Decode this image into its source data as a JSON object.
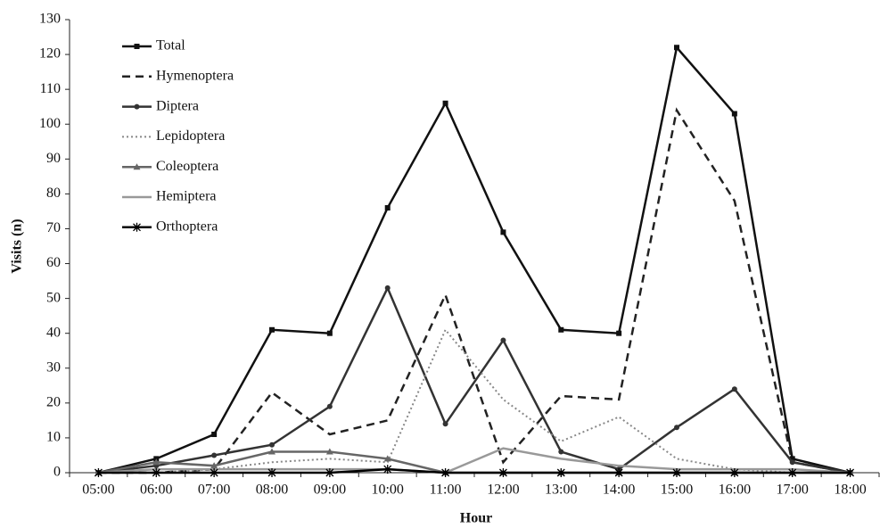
{
  "chart_data": {
    "type": "line",
    "x_label": "Hour",
    "y_label": "Visits (n)",
    "categories": [
      "05:00",
      "06:00",
      "07:00",
      "08:00",
      "09:00",
      "10:00",
      "11:00",
      "12:00",
      "13:00",
      "14:00",
      "15:00",
      "16:00",
      "17:00",
      "18:00"
    ],
    "ylim": [
      0,
      130
    ],
    "yticks": [
      0,
      10,
      20,
      30,
      40,
      50,
      60,
      70,
      80,
      90,
      100,
      110,
      120,
      130
    ],
    "series": [
      {
        "name": "Total",
        "color": "#111111",
        "dash": "solid",
        "marker": "square",
        "values": [
          0,
          4,
          11,
          41,
          40,
          76,
          106,
          69,
          41,
          40,
          122,
          103,
          4,
          0
        ]
      },
      {
        "name": "Hymenoptera",
        "color": "#222222",
        "dash": "dashed",
        "marker": "none",
        "values": [
          0,
          0,
          1,
          23,
          11,
          15,
          51,
          3,
          22,
          21,
          104,
          78,
          3,
          0
        ]
      },
      {
        "name": "Diptera",
        "color": "#333333",
        "dash": "solid",
        "marker": "circle",
        "values": [
          0,
          2,
          5,
          8,
          19,
          53,
          14,
          38,
          6,
          1,
          13,
          24,
          3,
          0
        ]
      },
      {
        "name": "Lepidoptera",
        "color": "#888888",
        "dash": "dotted",
        "marker": "none",
        "values": [
          0,
          0,
          1,
          3,
          4,
          3,
          41,
          21,
          9,
          16,
          4,
          1,
          0,
          0
        ]
      },
      {
        "name": "Coleoptera",
        "color": "#666666",
        "dash": "solid",
        "marker": "triangle",
        "values": [
          0,
          3,
          2,
          6,
          6,
          4,
          0,
          0,
          0,
          0,
          0,
          0,
          0,
          0
        ]
      },
      {
        "name": "Hemiptera",
        "color": "#999999",
        "dash": "solid",
        "marker": "none",
        "values": [
          0,
          1,
          1,
          1,
          1,
          1,
          0,
          7,
          4,
          2,
          1,
          1,
          1,
          0
        ]
      },
      {
        "name": "Orthoptera",
        "color": "#000000",
        "dash": "solid",
        "marker": "star",
        "values": [
          0,
          0,
          0,
          0,
          0,
          1,
          0,
          0,
          0,
          0,
          0,
          0,
          0,
          0
        ]
      }
    ]
  }
}
